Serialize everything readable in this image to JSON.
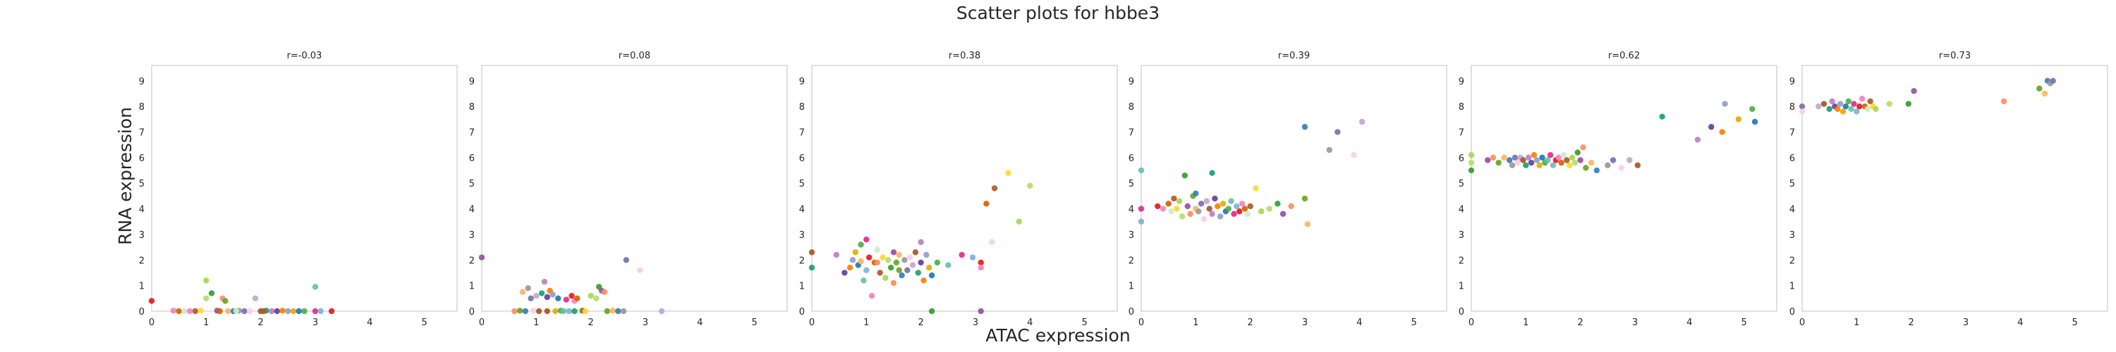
{
  "figure_title": "Scatter plots for hbbe3",
  "x_axis_label": "ATAC expression",
  "y_axis_label": "RNA expression",
  "palette": [
    "#e41a1c",
    "#377eb8",
    "#4daf4a",
    "#984ea3",
    "#ff7f00",
    "#ffd92f",
    "#a65628",
    "#f781bf",
    "#999999",
    "#66c2a5",
    "#fc8d62",
    "#8da0cb",
    "#a6d854",
    "#1b9e77",
    "#d95f02",
    "#7570b3",
    "#e7298a",
    "#66a61e",
    "#e6ab02",
    "#b3de69",
    "#bc80bd",
    "#ccebc5",
    "#fccde5",
    "#80b1d3",
    "#fdb462",
    "#1f78b4",
    "#33a02c",
    "#6a3d9a",
    "#b15928",
    "#c2a5cf"
  ],
  "chart_data": [
    {
      "type": "scatter",
      "title": "r=-0.03",
      "xlim": [
        0,
        5.6
      ],
      "ylim": [
        0,
        9.6
      ],
      "xticks": [
        "0",
        "1",
        "2",
        "3",
        "4",
        "5"
      ],
      "yticks": [
        "0",
        "1",
        "2",
        "3",
        "4",
        "5",
        "6",
        "7",
        "8",
        "9"
      ],
      "points": [
        [
          0,
          0.4
        ],
        [
          0.4,
          0.02
        ],
        [
          0.5,
          0
        ],
        [
          0.6,
          0
        ],
        [
          0.8,
          0
        ],
        [
          0.9,
          0.02
        ],
        [
          1.0,
          1.2
        ],
        [
          1.0,
          0.5
        ],
        [
          1.1,
          0.7
        ],
        [
          1.2,
          0.02
        ],
        [
          1.3,
          0.5
        ],
        [
          1.35,
          0.4
        ],
        [
          1.4,
          0
        ],
        [
          1.5,
          0
        ],
        [
          1.6,
          0.02
        ],
        [
          1.7,
          0
        ],
        [
          1.8,
          0
        ],
        [
          1.9,
          0.5
        ],
        [
          2.0,
          0
        ],
        [
          2.1,
          0.02
        ],
        [
          2.2,
          0
        ],
        [
          2.3,
          0
        ],
        [
          2.4,
          0.02
        ],
        [
          2.5,
          0
        ],
        [
          2.6,
          0
        ],
        [
          2.7,
          0
        ],
        [
          2.8,
          0
        ],
        [
          3.0,
          0.95
        ],
        [
          3.0,
          0
        ],
        [
          3.1,
          0
        ],
        [
          3.3,
          0
        ],
        [
          0.7,
          0
        ],
        [
          1.25,
          0
        ],
        [
          1.55,
          0.02
        ],
        [
          2.05,
          0
        ]
      ]
    },
    {
      "type": "scatter",
      "title": "r=0.08",
      "xlim": [
        0,
        5.6
      ],
      "ylim": [
        0,
        9.6
      ],
      "xticks": [
        "0",
        "1",
        "2",
        "3",
        "4",
        "5"
      ],
      "yticks": [
        "0",
        "1",
        "2",
        "3",
        "4",
        "5",
        "6",
        "7",
        "8",
        "9"
      ],
      "points": [
        [
          0,
          2.1
        ],
        [
          0.6,
          0
        ],
        [
          0.7,
          0.02
        ],
        [
          0.75,
          0.75
        ],
        [
          0.8,
          0
        ],
        [
          0.85,
          0.9
        ],
        [
          0.9,
          0.5
        ],
        [
          0.95,
          0.02
        ],
        [
          1.0,
          0.6
        ],
        [
          1.05,
          0
        ],
        [
          1.1,
          0.7
        ],
        [
          1.15,
          1.15
        ],
        [
          1.2,
          0.55
        ],
        [
          1.25,
          0.8
        ],
        [
          1.3,
          0.65
        ],
        [
          1.35,
          0
        ],
        [
          1.4,
          0.5
        ],
        [
          1.45,
          0.02
        ],
        [
          1.5,
          0
        ],
        [
          1.55,
          0.45
        ],
        [
          1.6,
          0
        ],
        [
          1.65,
          0.6
        ],
        [
          1.7,
          0.4
        ],
        [
          1.75,
          0.5
        ],
        [
          1.8,
          0
        ],
        [
          1.85,
          0.02
        ],
        [
          1.9,
          0
        ],
        [
          2.0,
          0.6
        ],
        [
          2.1,
          0.5
        ],
        [
          2.15,
          0.95
        ],
        [
          2.2,
          0.8
        ],
        [
          2.25,
          0.75
        ],
        [
          2.3,
          0
        ],
        [
          2.4,
          0.02
        ],
        [
          2.5,
          0
        ],
        [
          2.6,
          0
        ],
        [
          2.65,
          2.0
        ],
        [
          2.9,
          1.6
        ],
        [
          3.3,
          0
        ],
        [
          1.2,
          0
        ],
        [
          1.7,
          0
        ]
      ]
    },
    {
      "type": "scatter",
      "title": "r=0.38",
      "xlim": [
        0,
        5.6
      ],
      "ylim": [
        0,
        9.6
      ],
      "xticks": [
        "0",
        "1",
        "2",
        "3",
        "4",
        "5"
      ],
      "yticks": [
        "0",
        "1",
        "2",
        "3",
        "4",
        "5",
        "6",
        "7",
        "8",
        "9"
      ],
      "points": [
        [
          0,
          2.3
        ],
        [
          0,
          1.7
        ],
        [
          0.45,
          2.2
        ],
        [
          0.6,
          1.5
        ],
        [
          0.7,
          1.7
        ],
        [
          0.75,
          2.0
        ],
        [
          0.8,
          2.3
        ],
        [
          0.85,
          1.8
        ],
        [
          0.9,
          2.6
        ],
        [
          0.95,
          1.2
        ],
        [
          1.0,
          2.8
        ],
        [
          1.0,
          1.6
        ],
        [
          1.05,
          2.1
        ],
        [
          1.1,
          0.6
        ],
        [
          1.15,
          1.9
        ],
        [
          1.2,
          2.4
        ],
        [
          1.25,
          1.5
        ],
        [
          1.3,
          2.1
        ],
        [
          1.35,
          1.3
        ],
        [
          1.4,
          2.0
        ],
        [
          1.45,
          1.7
        ],
        [
          1.5,
          2.3
        ],
        [
          1.5,
          1.1
        ],
        [
          1.55,
          1.9
        ],
        [
          1.6,
          2.2
        ],
        [
          1.65,
          1.4
        ],
        [
          1.7,
          2.0
        ],
        [
          1.75,
          1.6
        ],
        [
          1.8,
          2.1
        ],
        [
          1.85,
          1.8
        ],
        [
          1.9,
          2.3
        ],
        [
          1.95,
          1.5
        ],
        [
          2.0,
          2.7
        ],
        [
          2.0,
          1.9
        ],
        [
          2.05,
          1.2
        ],
        [
          2.1,
          2.2
        ],
        [
          2.15,
          1.7
        ],
        [
          2.2,
          1.4
        ],
        [
          2.3,
          1.9
        ],
        [
          2.5,
          1.8
        ],
        [
          2.75,
          2.2
        ],
        [
          2.95,
          2.1
        ],
        [
          3.1,
          1.9
        ],
        [
          3.1,
          1.7
        ],
        [
          3.2,
          4.2
        ],
        [
          3.3,
          2.7
        ],
        [
          3.35,
          4.8
        ],
        [
          3.6,
          5.4
        ],
        [
          3.8,
          3.5
        ],
        [
          4.0,
          4.9
        ],
        [
          2.2,
          0
        ],
        [
          3.1,
          0
        ],
        [
          1.2,
          1.9
        ],
        [
          1.6,
          1.6
        ],
        [
          0.9,
          1.95
        ]
      ]
    },
    {
      "type": "scatter",
      "title": "r=0.39",
      "xlim": [
        0,
        5.6
      ],
      "ylim": [
        0,
        9.6
      ],
      "xticks": [
        "0",
        "1",
        "2",
        "3",
        "4",
        "5"
      ],
      "yticks": [
        "0",
        "1",
        "2",
        "3",
        "4",
        "5",
        "6",
        "7",
        "8",
        "9"
      ],
      "points": [
        [
          0,
          5.5
        ],
        [
          0,
          4.0
        ],
        [
          0,
          3.5
        ],
        [
          0.3,
          4.1
        ],
        [
          0.4,
          4.0
        ],
        [
          0.5,
          4.2
        ],
        [
          0.55,
          3.9
        ],
        [
          0.6,
          4.4
        ],
        [
          0.65,
          4.0
        ],
        [
          0.7,
          4.3
        ],
        [
          0.75,
          3.7
        ],
        [
          0.8,
          5.3
        ],
        [
          0.85,
          4.1
        ],
        [
          0.9,
          3.8
        ],
        [
          0.95,
          4.5
        ],
        [
          1.0,
          4.0
        ],
        [
          1.0,
          4.6
        ],
        [
          1.05,
          3.9
        ],
        [
          1.1,
          4.2
        ],
        [
          1.15,
          3.6
        ],
        [
          1.2,
          4.3
        ],
        [
          1.25,
          4.0
        ],
        [
          1.3,
          5.4
        ],
        [
          1.3,
          3.8
        ],
        [
          1.35,
          4.4
        ],
        [
          1.4,
          4.1
        ],
        [
          1.45,
          3.7
        ],
        [
          1.5,
          4.2
        ],
        [
          1.55,
          3.9
        ],
        [
          1.6,
          4.0
        ],
        [
          1.65,
          4.3
        ],
        [
          1.7,
          3.8
        ],
        [
          1.75,
          4.1
        ],
        [
          1.8,
          3.9
        ],
        [
          1.85,
          4.2
        ],
        [
          1.9,
          4.0
        ],
        [
          1.95,
          3.8
        ],
        [
          2.0,
          4.1
        ],
        [
          2.1,
          4.8
        ],
        [
          2.2,
          3.9
        ],
        [
          2.35,
          4.0
        ],
        [
          2.5,
          4.2
        ],
        [
          2.6,
          3.8
        ],
        [
          2.75,
          4.1
        ],
        [
          3.0,
          4.4
        ],
        [
          3.05,
          3.4
        ],
        [
          3.0,
          7.2
        ],
        [
          3.45,
          6.3
        ],
        [
          3.6,
          7.0
        ],
        [
          3.9,
          6.1
        ],
        [
          4.05,
          7.4
        ]
      ]
    },
    {
      "type": "scatter",
      "title": "r=0.62",
      "xlim": [
        0,
        5.6
      ],
      "ylim": [
        0,
        9.6
      ],
      "xticks": [
        "0",
        "1",
        "2",
        "3",
        "4",
        "5"
      ],
      "yticks": [
        "0",
        "1",
        "2",
        "3",
        "4",
        "5",
        "6",
        "7",
        "8",
        "9"
      ],
      "points": [
        [
          0,
          6.1
        ],
        [
          0,
          5.8
        ],
        [
          0,
          5.5
        ],
        [
          0.3,
          5.9
        ],
        [
          0.4,
          6.0
        ],
        [
          0.5,
          5.8
        ],
        [
          0.6,
          6.0
        ],
        [
          0.7,
          5.9
        ],
        [
          0.75,
          5.7
        ],
        [
          0.8,
          6.0
        ],
        [
          0.85,
          5.8
        ],
        [
          0.9,
          6.0
        ],
        [
          0.95,
          5.9
        ],
        [
          1.0,
          5.7
        ],
        [
          1.05,
          6.0
        ],
        [
          1.1,
          5.8
        ],
        [
          1.15,
          6.1
        ],
        [
          1.2,
          5.9
        ],
        [
          1.25,
          5.7
        ],
        [
          1.3,
          6.0
        ],
        [
          1.35,
          5.8
        ],
        [
          1.4,
          5.9
        ],
        [
          1.45,
          6.1
        ],
        [
          1.5,
          5.7
        ],
        [
          1.55,
          5.9
        ],
        [
          1.6,
          6.0
        ],
        [
          1.65,
          5.8
        ],
        [
          1.7,
          6.1
        ],
        [
          1.75,
          5.9
        ],
        [
          1.8,
          5.7
        ],
        [
          1.85,
          6.0
        ],
        [
          1.9,
          5.8
        ],
        [
          1.95,
          6.2
        ],
        [
          2.0,
          5.9
        ],
        [
          2.05,
          6.4
        ],
        [
          2.1,
          5.6
        ],
        [
          2.2,
          5.8
        ],
        [
          2.3,
          5.5
        ],
        [
          2.5,
          5.7
        ],
        [
          2.6,
          5.9
        ],
        [
          2.75,
          5.6
        ],
        [
          2.9,
          5.9
        ],
        [
          3.05,
          5.7
        ],
        [
          3.5,
          7.6
        ],
        [
          4.15,
          6.7
        ],
        [
          4.4,
          7.2
        ],
        [
          4.6,
          7.0
        ],
        [
          4.65,
          8.1
        ],
        [
          4.9,
          7.5
        ],
        [
          5.2,
          7.4
        ],
        [
          5.15,
          7.9
        ]
      ]
    },
    {
      "type": "scatter",
      "title": "r=0.73",
      "xlim": [
        0,
        5.6
      ],
      "ylim": [
        0,
        9.6
      ],
      "xticks": [
        "0",
        "1",
        "2",
        "3",
        "4",
        "5"
      ],
      "yticks": [
        "0",
        "1",
        "2",
        "3",
        "4",
        "5",
        "6",
        "7",
        "8",
        "9"
      ],
      "points": [
        [
          0,
          8.0
        ],
        [
          0,
          7.8
        ],
        [
          0.3,
          8.0
        ],
        [
          0.4,
          8.1
        ],
        [
          0.5,
          7.9
        ],
        [
          0.55,
          8.2
        ],
        [
          0.6,
          8.0
        ],
        [
          0.65,
          7.9
        ],
        [
          0.7,
          8.1
        ],
        [
          0.75,
          7.8
        ],
        [
          0.8,
          8.0
        ],
        [
          0.85,
          8.2
        ],
        [
          0.9,
          7.9
        ],
        [
          0.95,
          8.1
        ],
        [
          1.0,
          7.8
        ],
        [
          1.05,
          8.0
        ],
        [
          1.1,
          8.3
        ],
        [
          1.15,
          8.0
        ],
        [
          1.2,
          7.9
        ],
        [
          1.25,
          8.2
        ],
        [
          1.3,
          8.0
        ],
        [
          1.35,
          7.9
        ],
        [
          1.6,
          8.1
        ],
        [
          1.95,
          8.1
        ],
        [
          2.05,
          8.6
        ],
        [
          3.7,
          8.2
        ],
        [
          4.35,
          8.7
        ],
        [
          4.45,
          8.5
        ],
        [
          4.5,
          9.0
        ],
        [
          4.55,
          8.9
        ],
        [
          4.6,
          9.0
        ]
      ]
    }
  ]
}
